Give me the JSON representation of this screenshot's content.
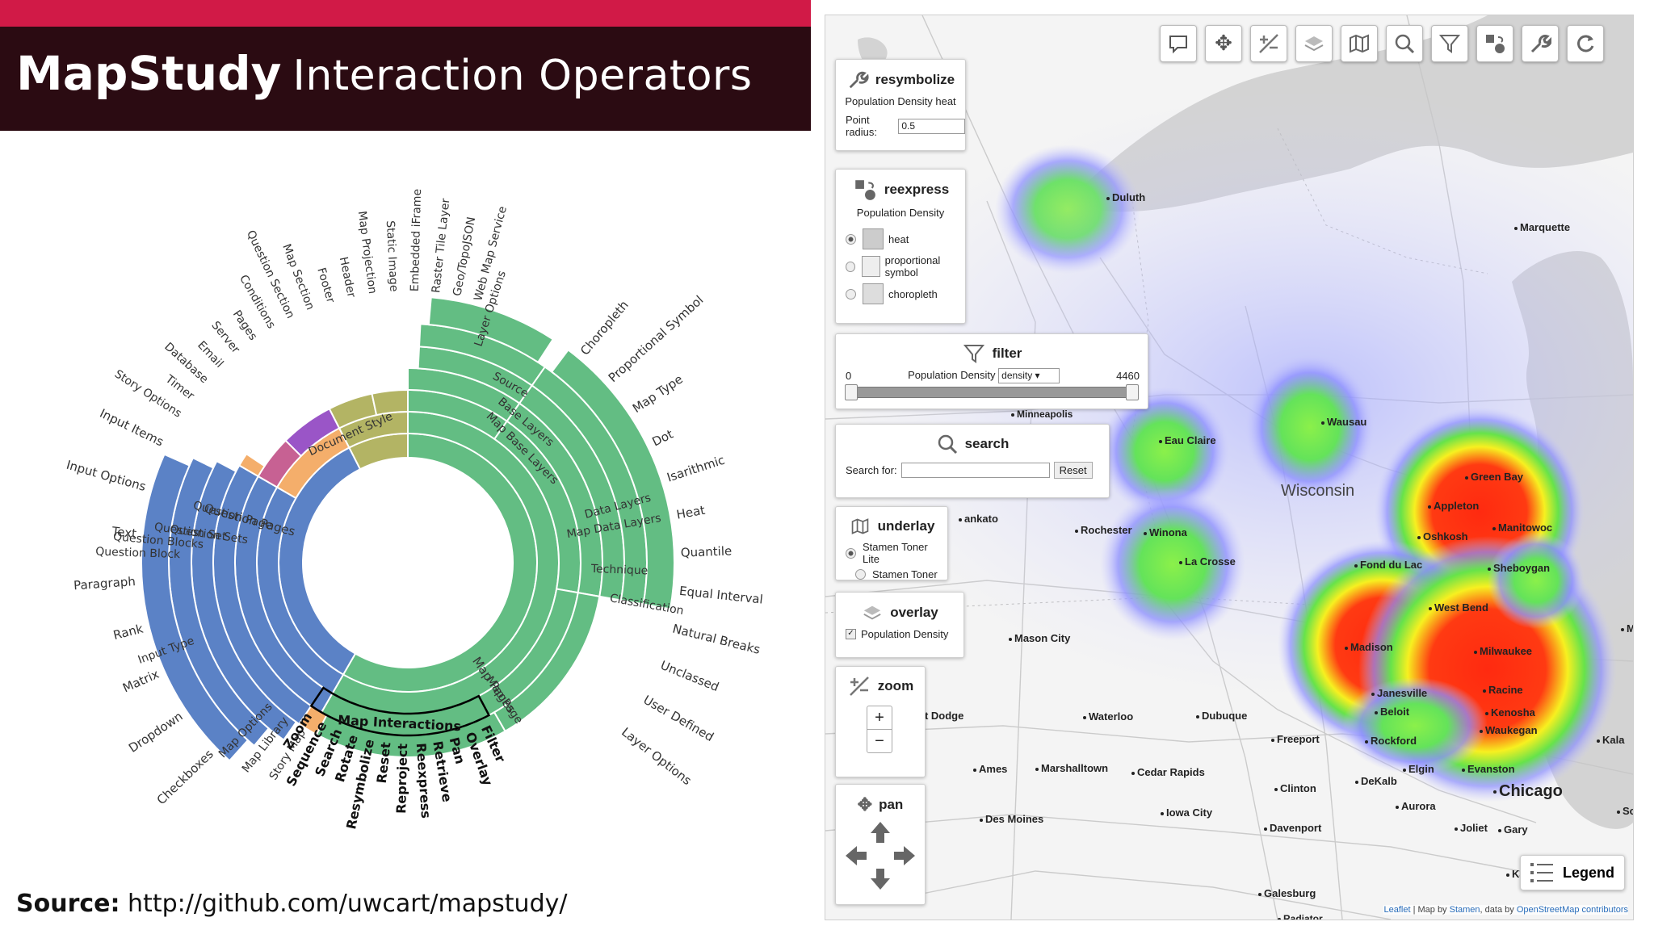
{
  "header": {
    "title_bold": "MapStudy",
    "title_rest": "Interaction Operators",
    "accent_color": "#d11a47",
    "bg_color": "#2b0b12"
  },
  "source": {
    "label": "Source:",
    "url": "http://github.com/uwcart/mapstudy/"
  },
  "sunburst": {
    "colors": {
      "blue": "#5b82c6",
      "green": "#63bd83",
      "olive": "#b3b464",
      "purple": "#9a55c7",
      "pink": "#c76193",
      "orange": "#f4ae6b"
    },
    "center_labels": [
      "Question Pages",
      "Map Pages"
    ],
    "ring2_labels": [
      "Question Page",
      "Map Page",
      "Document Style"
    ],
    "ring3_labels": [
      "Question Sets",
      "Map Base Layers",
      "Map Data Layers",
      "Map Interactions"
    ],
    "ring4_labels": [
      "Question Set",
      "Base Layers",
      "Data Layers",
      "Technique"
    ],
    "ring5_labels": [
      "Question Blocks",
      "Source",
      "Classification"
    ],
    "ring6_labels": [
      "Question Block",
      "Input Type",
      "Layer Options"
    ],
    "outer_labels_left": [
      "Input Items",
      "Input Options",
      "Text",
      "Paragraph",
      "Rank",
      "Matrix",
      "Dropdown",
      "Checkboxes"
    ],
    "outer_labels_top": [
      "Story Options",
      "Timer",
      "Database",
      "Email",
      "Server",
      "Pages",
      "Conditions",
      "Question Section",
      "Map Section",
      "Footer",
      "Header",
      "Map Projection",
      "Static Image",
      "Embedded iFrame",
      "Raster Tile Layer",
      "Geo/TopoJSON",
      "Web Map Service"
    ],
    "outer_labels_right": [
      "Choropleth",
      "Proportional Symbol",
      "Map Type",
      "Dot",
      "Isarithmic",
      "Heat",
      "Quantile",
      "Equal Interval",
      "Natural Breaks",
      "Unclassed",
      "User Defined",
      "Layer Options"
    ],
    "outer_labels_bottom_left": [
      "Story Map",
      "Map Library",
      "Map Options"
    ],
    "interaction_ops": [
      "Zoom",
      "Sequence",
      "Search",
      "Rotate",
      "Resymbolize",
      "Reset",
      "Reproject",
      "Reexpress",
      "Retrieve",
      "Pan",
      "Overlay",
      "Filter"
    ]
  },
  "map": {
    "toolbar_icons": [
      "retrieve-icon",
      "pan-icon",
      "zoom-icon",
      "overlay-icon",
      "underlay-icon",
      "search-icon",
      "filter-icon",
      "reexpress-icon",
      "resymbolize-icon",
      "reset-icon"
    ],
    "resymbolize": {
      "title": "resymbolize",
      "subtitle": "Population Density heat",
      "field_label": "Point radius:",
      "field_value": "0.5"
    },
    "reexpress": {
      "title": "reexpress",
      "subtitle": "Population Density",
      "options": [
        "heat",
        "proportional symbol",
        "choropleth"
      ],
      "selected": "heat"
    },
    "filter": {
      "title": "filter",
      "min": "0",
      "max": "4460",
      "label": "Population Density",
      "select_value": "density"
    },
    "search": {
      "title": "search",
      "label": "Search for:",
      "placeholder": "",
      "reset_label": "Reset"
    },
    "underlay": {
      "title": "underlay",
      "options": [
        "Stamen Toner Lite",
        "Stamen Toner"
      ],
      "selected": "Stamen Toner Lite"
    },
    "overlay": {
      "title": "overlay",
      "checkbox_label": "Population Density",
      "checked": true
    },
    "zoom": {
      "title": "zoom",
      "plus": "+",
      "minus": "−"
    },
    "pan": {
      "title": "pan"
    },
    "legend_label": "Legend",
    "state_label": "Wisconsin",
    "big_city": "Chicago",
    "partial_labels": [
      "Minneapolis",
      "ankato",
      "Iowa",
      "Mu",
      "Kala",
      "So",
      "Radiator"
    ],
    "cities": [
      "Duluth",
      "Marquette",
      "Wausau",
      "Eau Claire",
      "Green Bay",
      "Appleton",
      "Oshkosh",
      "Manitowoc",
      "Rochester",
      "Winona",
      "La Crosse",
      "Fond du Lac",
      "Sheboygan",
      "West Bend",
      "Madison",
      "Milwaukee",
      "Mason City",
      "Janesville",
      "Racine",
      "Beloit",
      "Kenosha",
      "Fort Dodge",
      "Waterloo",
      "Dubuque",
      "Freeport",
      "Rockford",
      "Waukegan",
      "Ames",
      "Marshalltown",
      "Cedar Rapids",
      "Elgin",
      "Evanston",
      "DeKalb",
      "Clinton",
      "Aurora",
      "Des Moines",
      "Iowa City",
      "Davenport",
      "Joliet",
      "Gary",
      "Kankakee",
      "Galesburg"
    ],
    "attribution": {
      "leaflet": "Leaflet",
      "mid": " | Map by ",
      "stamen": "Stamen",
      "mid2": ", data by ",
      "osm": "OpenStreetMap contributors"
    }
  }
}
